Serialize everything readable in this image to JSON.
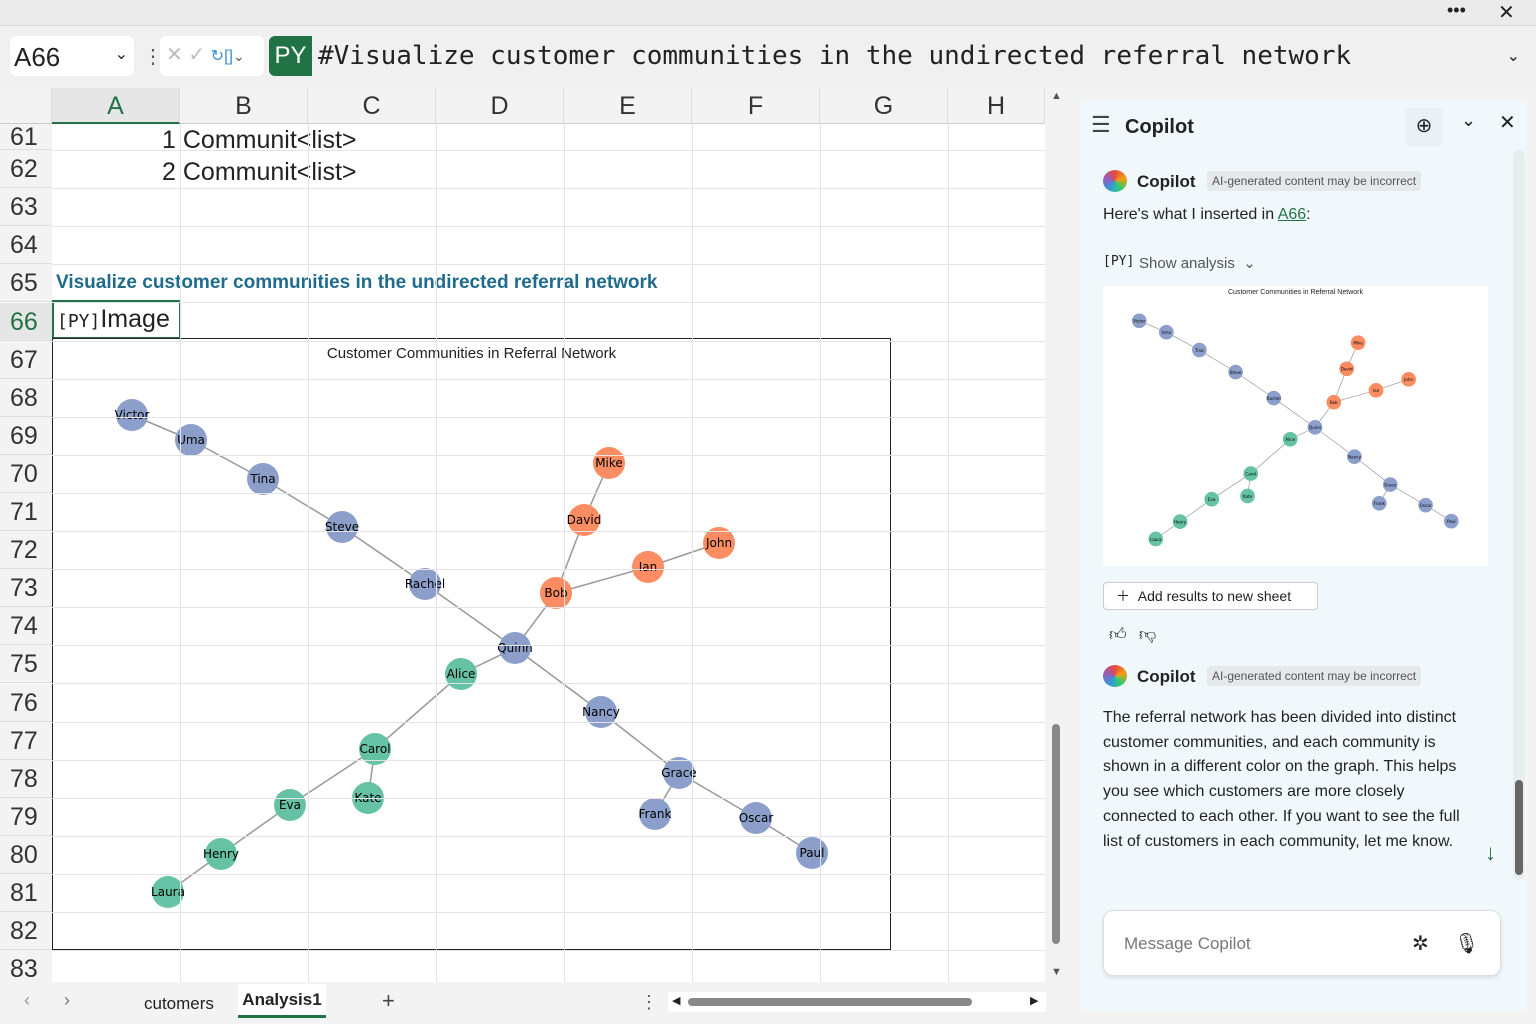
{
  "window": {
    "more_icon": "ellipsis-icon",
    "close_icon": "close-icon"
  },
  "formula_bar": {
    "name_box": "A66",
    "py_badge": "PY",
    "formula": "#Visualize customer communities in the undirected referral network"
  },
  "sheet": {
    "columns": [
      "A",
      "B",
      "C",
      "D",
      "E",
      "F",
      "G",
      "H"
    ],
    "rows": [
      "61",
      "62",
      "63",
      "64",
      "65",
      "66",
      "67",
      "68",
      "69",
      "70",
      "71",
      "72",
      "73",
      "74",
      "75",
      "76",
      "77",
      "78",
      "79",
      "80",
      "81",
      "82",
      "83"
    ],
    "cells": {
      "r61_a": "1",
      "r61_b": "Communit",
      "r61_c": "<list>",
      "r62_a": "2",
      "r62_b": "Communit",
      "r62_c": "<list>",
      "r65": "Visualize customer communities in the undirected referral network",
      "r66_icon": "[PY]",
      "r66": "Image"
    },
    "title_color": "#1f6b8c"
  },
  "chart": {
    "title": "Customer Communities in Referral Network",
    "community_colors": {
      "blue": "#8c9fcb",
      "orange": "#fc8d62",
      "green": "#66c2a5"
    },
    "nodes": [
      {
        "name": "Victor",
        "community": "blue"
      },
      {
        "name": "Uma",
        "community": "blue"
      },
      {
        "name": "Tina",
        "community": "blue"
      },
      {
        "name": "Steve",
        "community": "blue"
      },
      {
        "name": "Rachel",
        "community": "blue"
      },
      {
        "name": "Quinn",
        "community": "blue"
      },
      {
        "name": "Nancy",
        "community": "blue"
      },
      {
        "name": "Grace",
        "community": "blue"
      },
      {
        "name": "Frank",
        "community": "blue"
      },
      {
        "name": "Oscar",
        "community": "blue"
      },
      {
        "name": "Paul",
        "community": "blue"
      },
      {
        "name": "Mike",
        "community": "orange"
      },
      {
        "name": "David",
        "community": "orange"
      },
      {
        "name": "Bob",
        "community": "orange"
      },
      {
        "name": "Ian",
        "community": "orange"
      },
      {
        "name": "John",
        "community": "orange"
      },
      {
        "name": "Alice",
        "community": "green"
      },
      {
        "name": "Carol",
        "community": "green"
      },
      {
        "name": "Kate",
        "community": "green"
      },
      {
        "name": "Eva",
        "community": "green"
      },
      {
        "name": "Henry",
        "community": "green"
      },
      {
        "name": "Laura",
        "community": "green"
      }
    ],
    "edges": [
      [
        "Victor",
        "Uma"
      ],
      [
        "Uma",
        "Tina"
      ],
      [
        "Tina",
        "Steve"
      ],
      [
        "Steve",
        "Rachel"
      ],
      [
        "Rachel",
        "Quinn"
      ],
      [
        "Quinn",
        "Nancy"
      ],
      [
        "Nancy",
        "Grace"
      ],
      [
        "Grace",
        "Frank"
      ],
      [
        "Grace",
        "Oscar"
      ],
      [
        "Oscar",
        "Paul"
      ],
      [
        "Quinn",
        "Bob"
      ],
      [
        "Bob",
        "David"
      ],
      [
        "David",
        "Mike"
      ],
      [
        "Bob",
        "Ian"
      ],
      [
        "Ian",
        "John"
      ],
      [
        "Quinn",
        "Alice"
      ],
      [
        "Alice",
        "Carol"
      ],
      [
        "Carol",
        "Kate"
      ],
      [
        "Carol",
        "Eva"
      ],
      [
        "Eva",
        "Henry"
      ],
      [
        "Henry",
        "Laura"
      ]
    ]
  },
  "tabs": {
    "items": [
      "cutomers",
      "Analysis1"
    ],
    "active": "Analysis1",
    "add": "+"
  },
  "copilot": {
    "title": "Copilot",
    "msg1": {
      "author": "Copilot",
      "badge": "AI-generated content may be incorrect",
      "text_before": "Here's what I inserted in ",
      "link": "A66",
      "text_after": ":",
      "analysis_icon": "[PY]",
      "show_analysis": "Show analysis",
      "add_results": "Add results to new sheet"
    },
    "msg2": {
      "author": "Copilot",
      "badge": "AI-generated content may be incorrect",
      "text": "The referral network has been divided into distinct customer communities, and each community is shown in a different color on the graph. This helps you see which customers are more closely connected to each other. If you want to see the full list of customers in each community, let me know."
    },
    "input_placeholder": "Message Copilot"
  }
}
